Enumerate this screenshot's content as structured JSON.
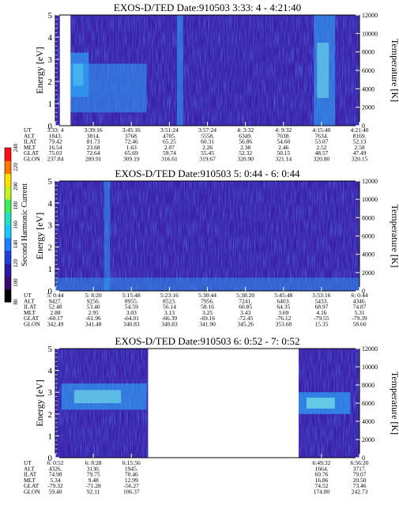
{
  "colorbar": {
    "label": "Second Harmonic Current",
    "ticks": [
      "80",
      "100",
      "120",
      "140",
      "160",
      "180",
      "200",
      "220",
      "240"
    ],
    "colors": [
      "#000000",
      "#3a0a6e",
      "#2a1aa6",
      "#1f3fd9",
      "#1f7fff",
      "#19c8ff",
      "#25e0c0",
      "#3df05a",
      "#c8f020",
      "#ffe000",
      "#ff7a00",
      "#ff1010"
    ]
  },
  "panel_palette": {
    "background": "#3a1fa8",
    "mid": "#2f3fd0",
    "bright": "#2f9ff5",
    "peak": "#7df0e8",
    "gap": "#ffffff"
  },
  "orbit_labels": [
    "UT",
    "ALT",
    "ILAT",
    "MLT",
    "GLAT",
    "GLON"
  ],
  "chart_data": [
    {
      "type": "heatmap",
      "title": "EXOS-D/TED   Date:910503   3:33: 4 - 4:21:40",
      "ylabel": "Energy [eV]",
      "y2label": "Temperature [K]",
      "yticks": [
        "0",
        "1",
        "2",
        "3",
        "4",
        "5"
      ],
      "y2ticks": [
        "0",
        "2000",
        "4000",
        "6000",
        "8000",
        "10000",
        "12000"
      ],
      "ylim": [
        0,
        5
      ],
      "y2lim": [
        0,
        12000
      ],
      "columns": [
        [
          "3:33: 4",
          "1843.",
          "79.42",
          "16.54",
          "75.03",
          "237.84"
        ],
        [
          "3:39:16",
          "3814.",
          "81.73",
          "23.68",
          "72.64",
          "289.91"
        ],
        [
          "3:45:16",
          "3768.",
          "72.46",
          "1.63",
          "65.69",
          "309.19"
        ],
        [
          "3:51:24",
          "4705.",
          "65.25",
          "2.07",
          "59.74",
          "316.61"
        ],
        [
          "3:57:24",
          "5558.",
          "60.31",
          "2.26",
          "55.45",
          "319.67"
        ],
        [
          "4: 3:32",
          "6349.",
          "56.86",
          "2.38",
          "52.32",
          "320.90"
        ],
        [
          "4: 9:32",
          "7038.",
          "54.60",
          "2.46",
          "50.15",
          "321.14"
        ],
        [
          "4:15:40",
          "7634.",
          "53.07",
          "2.52",
          "48.57",
          "320.80"
        ],
        [
          "4:21:40",
          "8169.",
          "52.13",
          "2.58",
          "47.49",
          "320.15"
        ]
      ],
      "gaps": [
        [
          0.015,
          0.05
        ]
      ],
      "features": [
        {
          "x": [
            0.05,
            0.11
          ],
          "y": [
            1.3,
            3.3
          ],
          "level": 0.95
        },
        {
          "x": [
            0.05,
            0.3
          ],
          "y": [
            0.6,
            2.8
          ],
          "level": 0.55
        },
        {
          "x": [
            0.4,
            0.42
          ],
          "y": [
            0,
            5
          ],
          "level": 0.6
        },
        {
          "x": [
            0.85,
            0.92
          ],
          "y": [
            0,
            5
          ],
          "level": 0.75
        }
      ]
    },
    {
      "type": "heatmap",
      "title": "EXOS-D/TED   Date:910503   5: 0:44 - 6: 0:44",
      "ylabel": "Energy [eV]",
      "y2label": "Temperature [K]",
      "yticks": [
        "0",
        "1",
        "2",
        "3",
        "4",
        "5"
      ],
      "y2ticks": [
        "0",
        "2000",
        "4000",
        "6000",
        "8000",
        "10000",
        "12000"
      ],
      "ylim": [
        0,
        5
      ],
      "y2lim": [
        0,
        12000
      ],
      "columns": [
        [
          "5: 0:44",
          "9427.",
          "52.48",
          "2.88",
          "-60.17",
          "342.49"
        ],
        [
          "5: 8:20",
          "9256.",
          "53.40",
          "2.95",
          "-61.96",
          "341.48"
        ],
        [
          "5:15:48",
          "8955.",
          "54.59",
          "3.03",
          "-64.01",
          "340.83"
        ],
        [
          "5:23:16",
          "8523.",
          "56.14",
          "3.13",
          "-66.39",
          "340.83"
        ],
        [
          "5:30:44",
          "7956.",
          "58.16",
          "3.25",
          "-69.16",
          "341.90"
        ],
        [
          "5:38:20",
          "7241.",
          "60.85",
          "3.43",
          "-72.45",
          "345.26"
        ],
        [
          "5:45:48",
          "6403.",
          "64.35",
          "3.69",
          "-76.12",
          "353.68"
        ],
        [
          "5:53:16",
          "5433.",
          "68.97",
          "4.16",
          "-79.55",
          "15.35"
        ],
        [
          "6: 0:44",
          "4346.",
          "74.87",
          "5.31",
          "-79.39",
          "58.60"
        ]
      ],
      "gaps": [],
      "features": [
        {
          "x": [
            0.16,
            0.18
          ],
          "y": [
            0,
            5
          ],
          "level": 0.45
        },
        {
          "x": [
            0.0,
            1.0
          ],
          "y": [
            0,
            0.6
          ],
          "level": 0.35
        }
      ]
    },
    {
      "type": "heatmap",
      "title": "EXOS-D/TED   Date:910503   6: 0:52 - 7: 0:52",
      "ylabel": "Energy [eV]",
      "y2label": "Temperature [K]",
      "yticks": [
        "0",
        "1",
        "2",
        "3",
        "4",
        "5"
      ],
      "y2ticks": [
        "0",
        "2000",
        "4000",
        "6000",
        "8000",
        "10000",
        "12000"
      ],
      "ylim": [
        0,
        5
      ],
      "y2lim": [
        0,
        12000
      ],
      "columns": [
        [
          "6: 0:52",
          "4326.",
          "74.98",
          "5.34",
          "-79.32",
          "59.40"
        ],
        [
          "6: 8:28",
          "3130.",
          "79.75",
          "9.48",
          "-71.28",
          "92.11"
        ],
        [
          "6:15:56",
          "1945.",
          "70.46",
          "12.99",
          "-56.27",
          "106.37"
        ],
        [
          "",
          "",
          "",
          "",
          "",
          ""
        ],
        [
          "",
          "",
          "",
          "",
          "",
          ""
        ],
        [
          "",
          "",
          "",
          "",
          "",
          ""
        ],
        [
          "",
          "",
          "",
          "",
          "",
          ""
        ],
        [
          "6:49:32",
          "1664.",
          "69.76",
          "16.86",
          "74.52",
          "174.80"
        ],
        [
          "6:56:20",
          "3717.",
          "79.07",
          "20.50",
          "73.46",
          "242.73"
        ]
      ],
      "gaps": [
        [
          0.305,
          0.8
        ]
      ],
      "features": [
        {
          "x": [
            0.02,
            0.3
          ],
          "y": [
            2.2,
            3.4
          ],
          "level": 0.8
        },
        {
          "x": [
            0.8,
            0.97
          ],
          "y": [
            2.0,
            3.0
          ],
          "level": 0.95
        }
      ]
    }
  ]
}
